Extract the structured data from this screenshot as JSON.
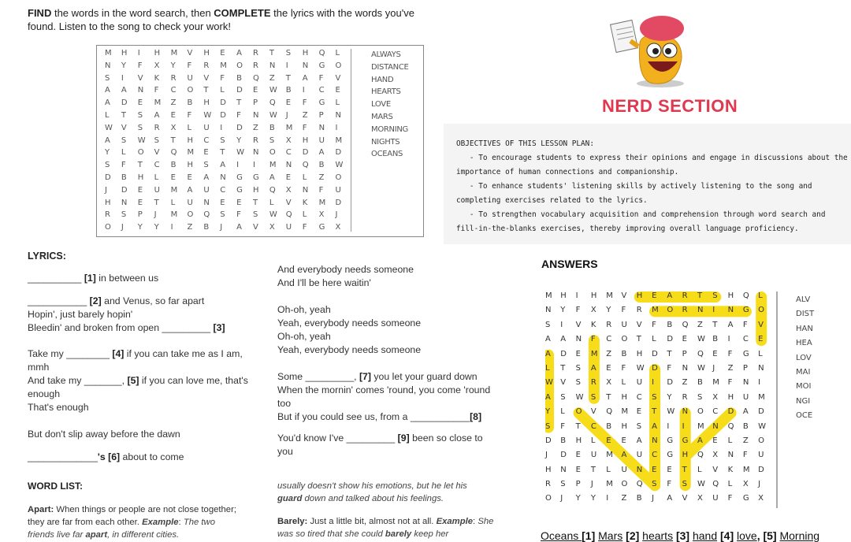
{
  "intro": {
    "find": "FIND",
    "t1": " the words in the word search, then ",
    "complete": "COMPLETE",
    "t2": " the lyrics with the words you've found.  Listen to the song to check your work!"
  },
  "grid": [
    "MHIHMVHEARTSHQL",
    "NYFXYFRMORNINGO",
    "SIVKRUVFBQZTAFV",
    "AANFCOTLDEWBICE",
    "ADEMZBHDTPQEFGL",
    "LTSAEFWDFNWJZPN",
    "WVSRXLUIDZBMFNI",
    "ASWSTHCSYRSXHUM",
    "YLOVQMETWNOCDAD",
    "SFTCBHSAIIMNQBW",
    "DBHLEEANGGAELZO",
    "JDEUMAUCGHQXNFU",
    "HNETLUNEETLVKMD",
    "RSPJMOQSFSWQLXJ",
    "OJYYIZBJAVXUFGX"
  ],
  "words": [
    "ALWAYS",
    "DISTANCE",
    "HAND",
    "HEARTS",
    "LOVE",
    "MARS",
    "MORNING",
    "NIGHTS",
    "OCEANS"
  ],
  "answer_words_visible": [
    "ALV",
    "DIST",
    "HAN",
    "HEA",
    "LOV",
    "MAI",
    "MOI",
    "NGI",
    "OCE"
  ],
  "lyrics": {
    "heading": "LYRICS:",
    "l1_blank": "__________",
    "l1_num": "[1]",
    "l1": " in between us",
    "l2_blank": "___________",
    "l2_num": "[2]",
    "l2": " and Venus, so far apart",
    "l3": "Hopin', just barely hopin'",
    "l4": "Bleedin' and broken from open ",
    "l4_blank": "_________",
    "l4_num": "[3]",
    "l5a": "Take my ",
    "l5_blank": "________",
    "l5_num": "[4]",
    "l5b": " if you can take me as I am, mmh",
    "l6a": "And take my ",
    "l6_blank": "_______,",
    "l6_num": "[5]",
    "l6b": " if you can love me, that's enough",
    "l7": "That's enough",
    "l8": "But don't slip away before the dawn",
    "l9_blank": "_____________",
    "l9_num": "'s [6]",
    "l9": " about to come",
    "r1": "And everybody needs someone",
    "r2": "And I'll be here waitin'",
    "r3": "Oh-oh, yeah",
    "r4": "Yeah, everybody needs someone",
    "r5": "Oh-oh, yeah",
    "r6": "Yeah, everybody needs someone",
    "r7a": "Some ",
    "r7_blank": "_________,",
    "r7_num": "[7]",
    "r7b": " you let your guard down",
    "r8": "When the mornin' comes 'round, you come 'round too",
    "r9a": "But if you could see us, from a ",
    "r9_blank": "___________",
    "r9_num": "[8]",
    "r10a": "You'd know I've ",
    "r10_blank": "_________",
    "r10_num": "[9]",
    "r10b": " been so close to you"
  },
  "word_list": {
    "heading": "WORD LIST:",
    "apart_term": "Apart:",
    "apart_def": " When things or people are not close together; they are far from each other. ",
    "apart_ex_label": "Example",
    "apart_ex1": "The two friends live far ",
    "apart_ex_word": "apart",
    "apart_ex2": ", in different cities.",
    "guard_cont": "usually doesn't show his emotions, but he let his ",
    "guard_word": "guard",
    "guard_cont2": " down and talked about his feelings.",
    "barely_term": "Barely:",
    "barely_def": " Just a little bit, almost not at all. ",
    "barely_ex_label": "Example",
    "barely_ex1": "She was so tired that she could ",
    "barely_word": "barely",
    "barely_ex2": " keep her"
  },
  "nerd": {
    "title": "NERD SECTION",
    "color": "#e0384f"
  },
  "objectives": {
    "heading": "OBJECTIVES OF THIS LESSON PLAN:",
    "lines": [
      "   - To encourage students to express their opinions and engage in discussions about the",
      "importance of human connections and companionship.",
      "   - To enhance students' listening skills by actively listening to the song and",
      "completing exercises related to the lyrics.",
      "   - To strengthen vocabulary acquisition and comprehension through word search and",
      "fill-in-the-blanks exercises, thereby improving overall language proficiency."
    ]
  },
  "answers": {
    "title": "ANSWERS",
    "highlight_color": "#f7dc1a",
    "key": [
      [
        "Oceans ",
        ""
      ],
      [
        " [1] ",
        "Mars"
      ],
      [
        " [2] ",
        "hearts"
      ],
      [
        " [3] ",
        "hand"
      ],
      [
        " [4] ",
        "love"
      ],
      [
        ", [5] ",
        "Morning"
      ]
    ]
  }
}
